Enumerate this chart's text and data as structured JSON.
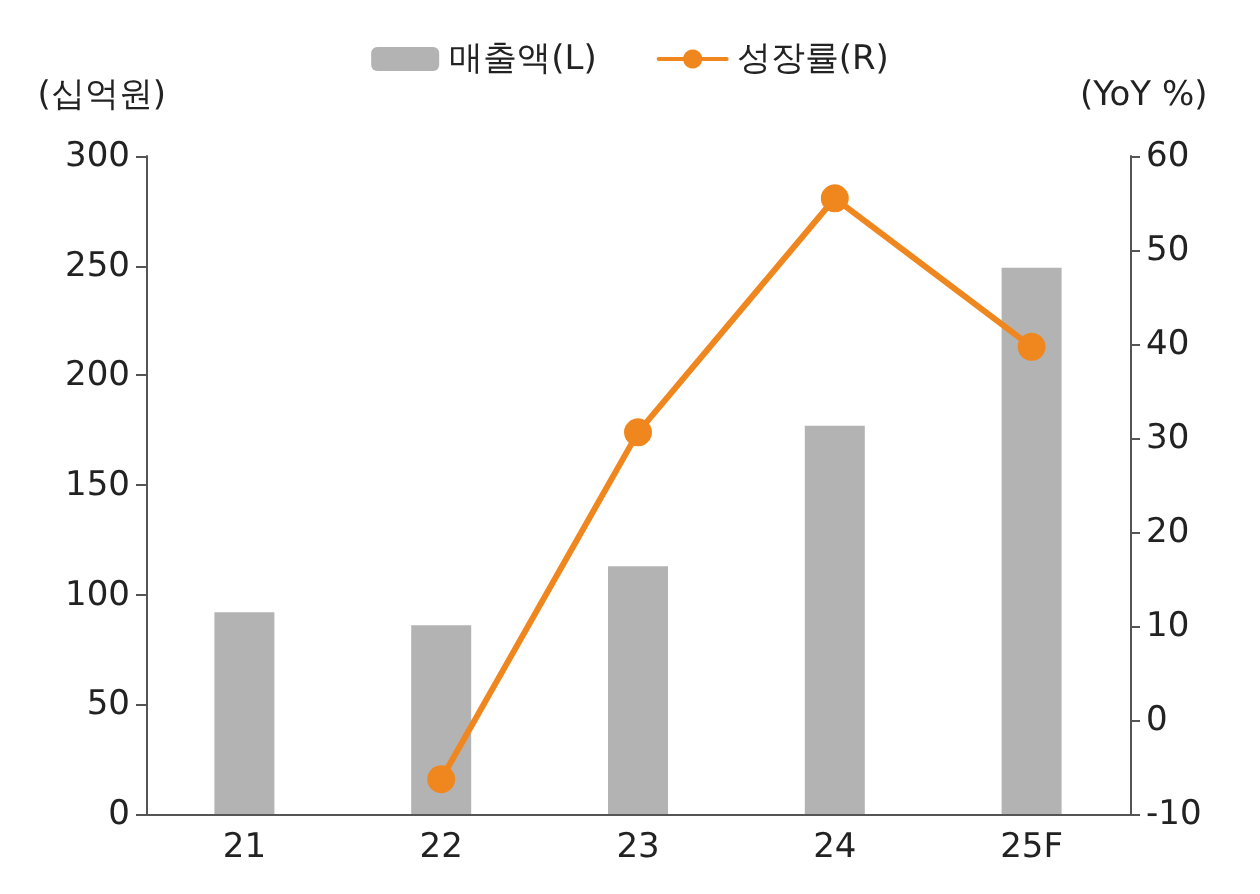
{
  "chart_data": {
    "type": "bar",
    "ylabel": "(십억원)",
    "y2label": "(YoY %)",
    "categories": [
      "21",
      "22",
      "23",
      "24",
      "25F"
    ],
    "series": [
      {
        "name": "매출액(L)",
        "color": "#b3b3b3",
        "values": [
          92,
          86,
          113,
          177,
          249
        ]
      },
      {
        "name": "성장률(R)",
        "type": "line",
        "axis": "y2",
        "color": "#f0861e",
        "values": [
          null,
          -6.3,
          30.6,
          55.5,
          39.7
        ]
      }
    ],
    "ylim": [
      0,
      300
    ],
    "yticks": [
      0,
      50,
      100,
      150,
      200,
      250,
      300
    ],
    "y2lim": [
      -10,
      60
    ],
    "y2ticks": [
      -10,
      0,
      10,
      20,
      30,
      40,
      50,
      60
    ],
    "grid": false,
    "legend": "top",
    "marker": "circle",
    "line_style": "solid"
  }
}
